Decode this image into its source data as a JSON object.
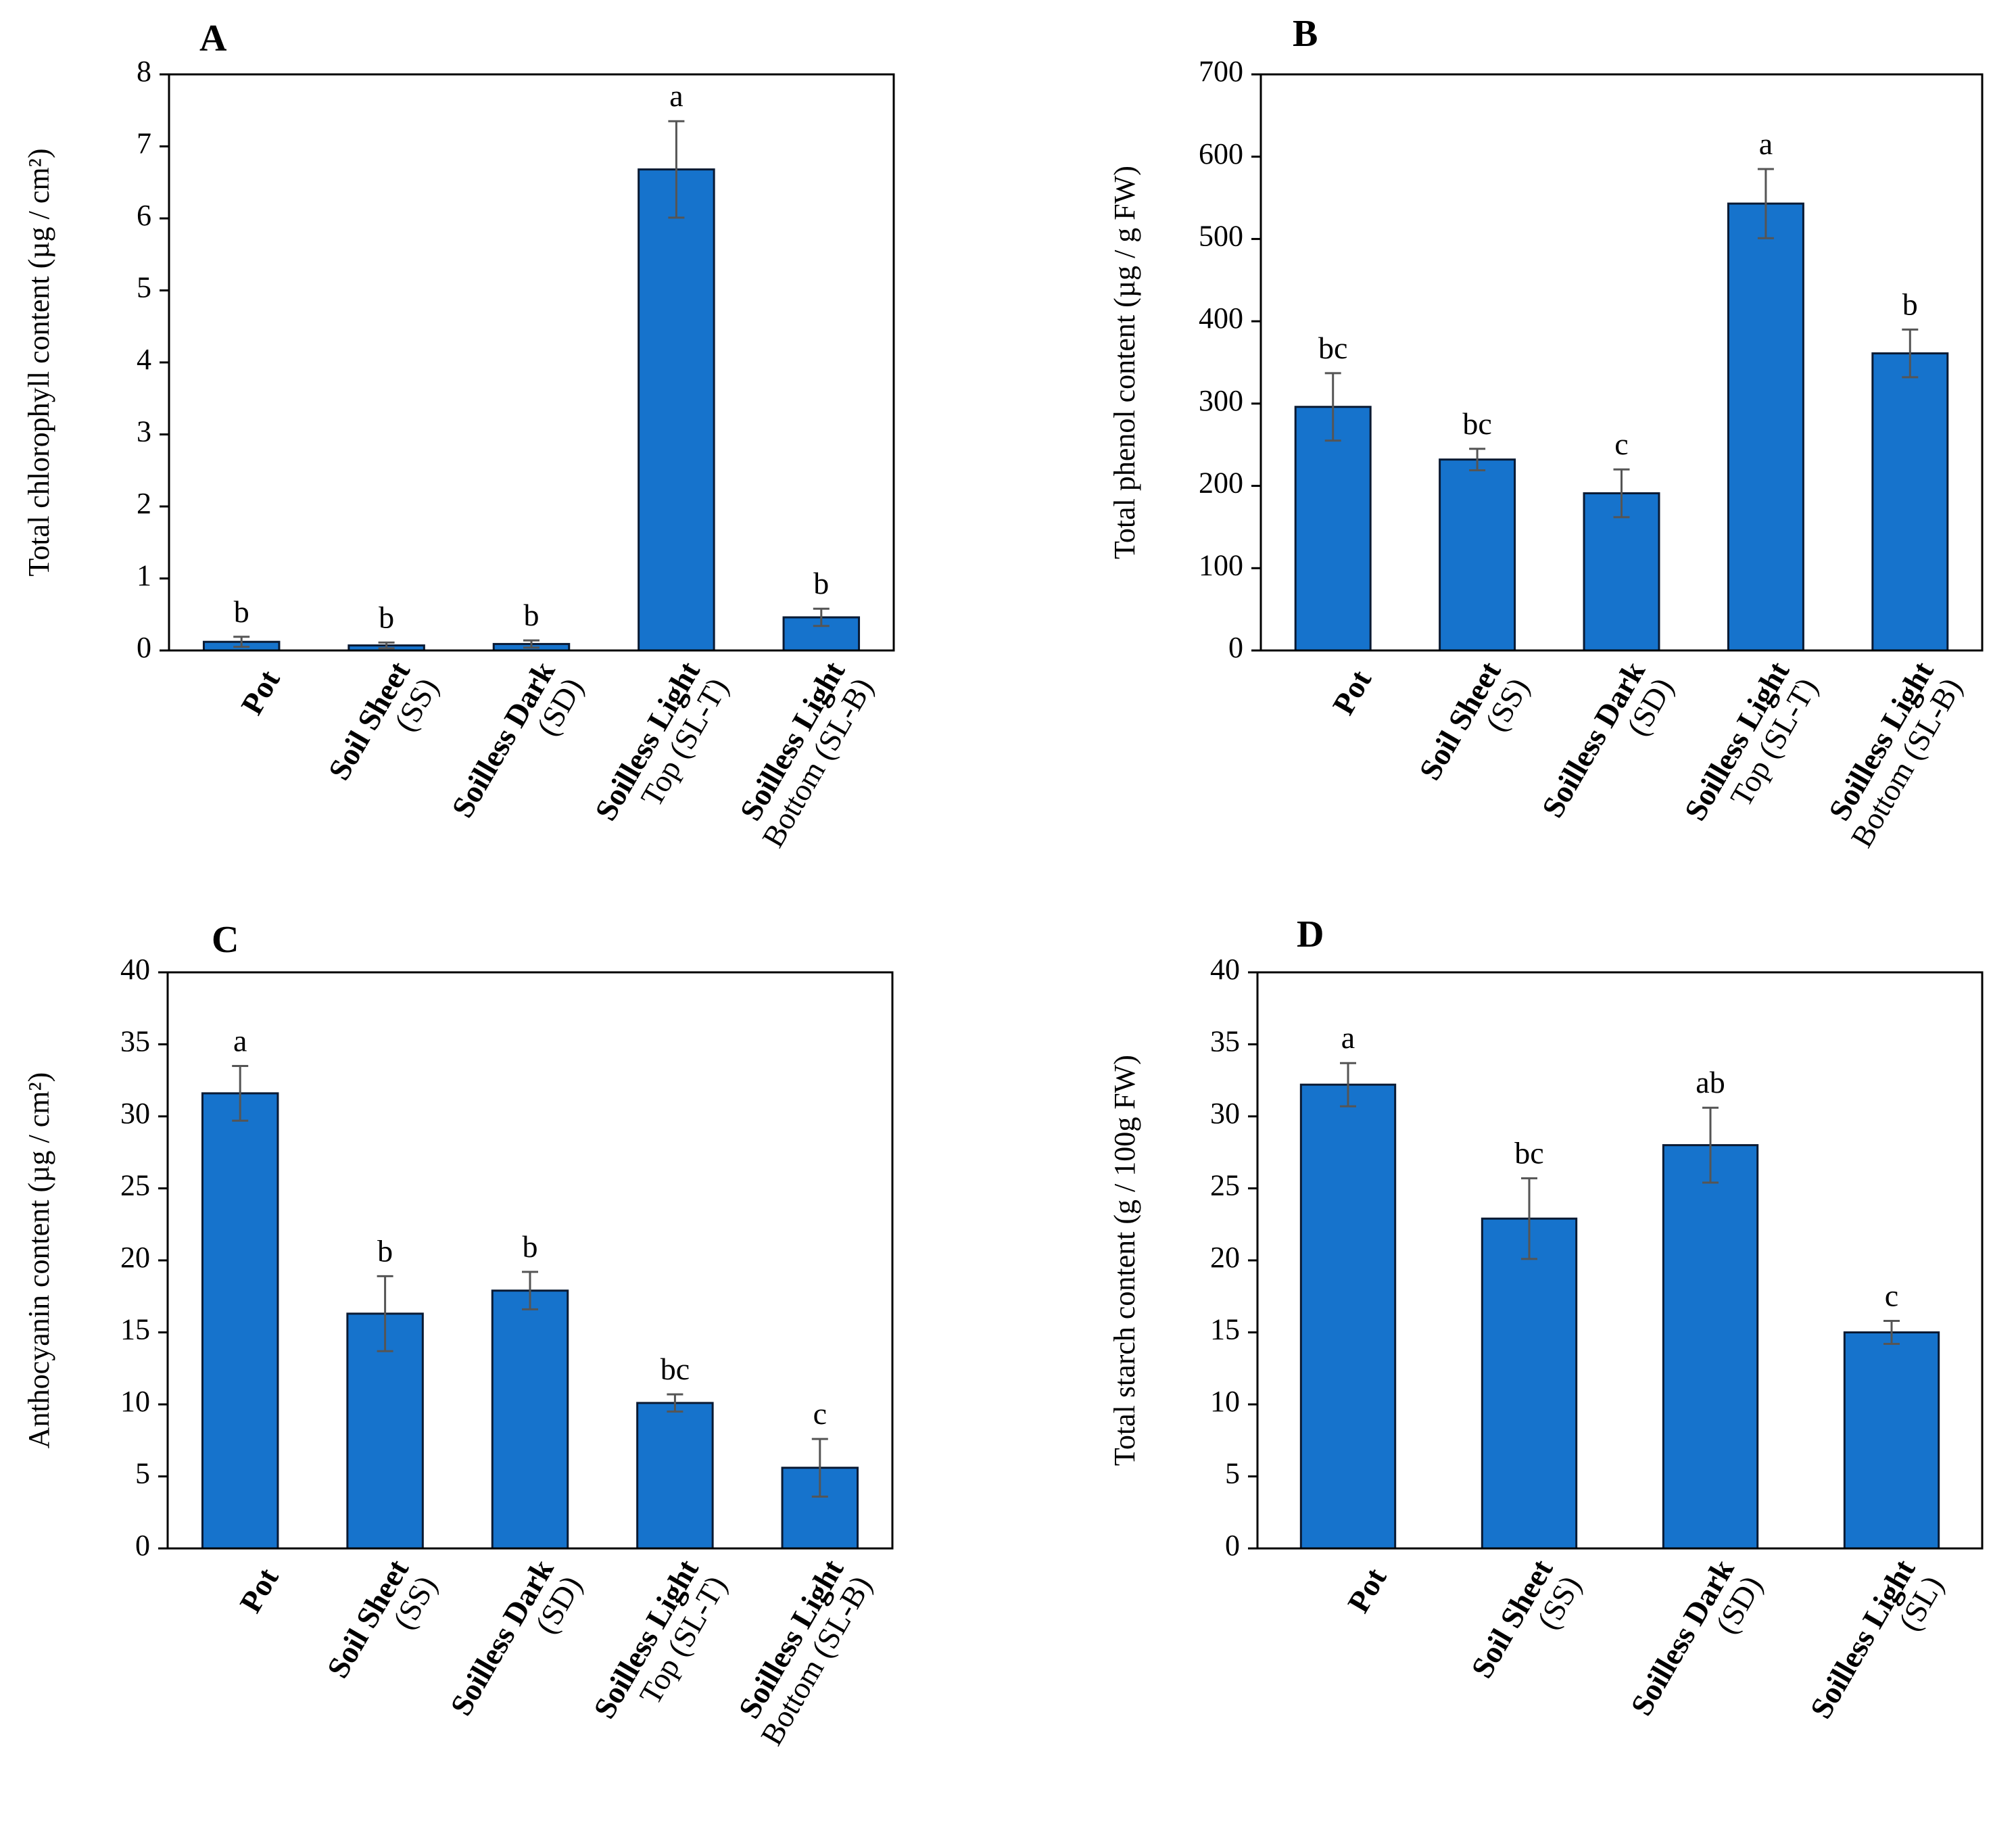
{
  "figure": {
    "chart_data": [
      {
        "type": "bar",
        "panel": "A",
        "ylabel": "Total chlorophyll content  (µg / cm²)",
        "ylim": [
          0,
          8
        ],
        "yticks": [
          0,
          1,
          2,
          3,
          4,
          5,
          6,
          7,
          8
        ],
        "categories": [
          [
            "Pot"
          ],
          [
            "Soil Sheet",
            "(SS)"
          ],
          [
            "Soilless Dark",
            "(SD)"
          ],
          [
            "Soilless Light",
            "Top (SL-T)"
          ],
          [
            "Soilless Light",
            "Bottom  (SL-B)"
          ]
        ],
        "values": [
          0.12,
          0.07,
          0.09,
          6.68,
          0.46
        ],
        "errors": [
          0.07,
          0.04,
          0.05,
          0.67,
          0.12
        ],
        "significance": [
          "b",
          "b",
          "b",
          "a",
          "b"
        ],
        "bar_color": "#1673CC"
      },
      {
        "type": "bar",
        "panel": "B",
        "ylabel": "Total phenol content  (µg / g FW)",
        "ylim": [
          0,
          700
        ],
        "yticks": [
          0,
          100,
          200,
          300,
          400,
          500,
          600,
          700
        ],
        "categories": [
          [
            "Pot"
          ],
          [
            "Soil Sheet",
            "(SS)"
          ],
          [
            "Soilless Dark",
            "(SD)"
          ],
          [
            "Soilless Light",
            "Top (SL-T)"
          ],
          [
            "Soilless Light",
            "Bottom  (SL-B)"
          ]
        ],
        "values": [
          296,
          232,
          191,
          543,
          361
        ],
        "errors": [
          41,
          13,
          29,
          42,
          29
        ],
        "significance": [
          "bc",
          "bc",
          "c",
          "a",
          "b"
        ],
        "bar_color": "#1673CC"
      },
      {
        "type": "bar",
        "panel": "C",
        "ylabel": "Anthocyanin content  (µg / cm²)",
        "ylim": [
          0,
          40
        ],
        "yticks": [
          0,
          5,
          10,
          15,
          20,
          25,
          30,
          35,
          40
        ],
        "categories": [
          [
            "Pot"
          ],
          [
            "Soil Sheet",
            "(SS)"
          ],
          [
            "Soilless Dark",
            "(SD)"
          ],
          [
            "Soilless Light",
            "Top (SL-T)"
          ],
          [
            "Soilless Light",
            "Bottom  (SL-B)"
          ]
        ],
        "values": [
          31.6,
          16.3,
          17.9,
          10.1,
          5.6
        ],
        "errors": [
          1.9,
          2.6,
          1.3,
          0.6,
          2.0
        ],
        "significance": [
          "a",
          "b",
          "b",
          "bc",
          "c"
        ],
        "bar_color": "#1673CC"
      },
      {
        "type": "bar",
        "panel": "D",
        "ylabel": "Total starch content  (g / 100g FW)",
        "ylim": [
          0,
          40
        ],
        "yticks": [
          0,
          5,
          10,
          15,
          20,
          25,
          30,
          35,
          40
        ],
        "categories": [
          [
            "Pot"
          ],
          [
            "Soil Sheet",
            "(SS)"
          ],
          [
            "Soilless Dark",
            "(SD)"
          ],
          [
            "Soilless Light",
            "(SL)"
          ]
        ],
        "values": [
          32.2,
          22.9,
          28.0,
          15.0
        ],
        "errors": [
          1.5,
          2.8,
          2.6,
          0.8
        ],
        "significance": [
          "a",
          "bc",
          "ab",
          "c"
        ],
        "bar_color": "#1673CC"
      }
    ]
  }
}
